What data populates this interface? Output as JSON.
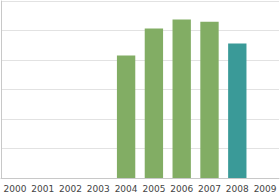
{
  "chart_data": {
    "type": "bar",
    "categories": [
      "2000",
      "2001",
      "2002",
      "2003",
      "2004",
      "2005",
      "2006",
      "2007",
      "2008",
      "2009"
    ],
    "values": [
      null,
      null,
      null,
      null,
      4.15,
      5.07,
      5.37,
      5.3,
      4.56,
      null
    ],
    "colors": [
      "#82ad64",
      "#82ad64",
      "#82ad64",
      "#82ad64",
      "#82ad64",
      "#82ad64",
      "#82ad64",
      "#82ad64",
      "#3a9a98",
      "#82ad64"
    ],
    "ylim": [
      0,
      6
    ],
    "yticks": [
      0,
      1,
      2,
      3,
      4,
      5,
      6
    ],
    "grid": true,
    "tick_labels": "x"
  }
}
